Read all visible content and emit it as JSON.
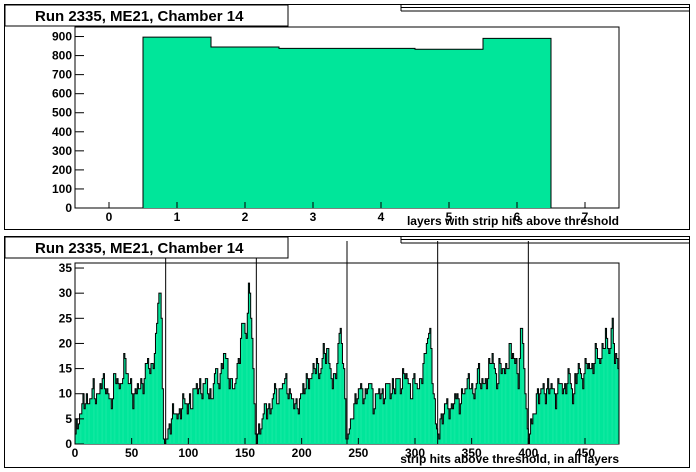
{
  "charts": [
    {
      "title": "Run 2335, ME21, Chamber 14",
      "xlabel": "layers with strip hits above threshold",
      "ylabel": "",
      "type": "bar",
      "xlim": [
        -0.5,
        7.5
      ],
      "ylim": [
        0,
        950
      ],
      "xticks": [
        0,
        1,
        2,
        3,
        4,
        5,
        6,
        7
      ],
      "yticks": [
        0,
        100,
        200,
        300,
        400,
        500,
        600,
        700,
        800,
        900
      ],
      "bin_edges": [
        0.5,
        1.5,
        2.5,
        3.5,
        4.5,
        5.5,
        6.5
      ],
      "values": [
        897,
        845,
        838,
        838,
        833,
        890
      ],
      "fill_color": "#00e69a",
      "grid": false
    },
    {
      "title": "Run 2335, ME21, Chamber 14",
      "xlabel": "strip hits above threshold, in all layers",
      "ylabel": "",
      "type": "bar",
      "xlim": [
        0,
        480
      ],
      "ylim": [
        0,
        36
      ],
      "xticks": [
        0,
        50,
        100,
        150,
        200,
        250,
        300,
        350,
        400,
        450
      ],
      "yticks": [
        0,
        5,
        10,
        15,
        20,
        25,
        30,
        35
      ],
      "markers": [
        80,
        160,
        240,
        320,
        400
      ],
      "keyframes": [
        [
          0,
          2
        ],
        [
          4,
          5
        ],
        [
          8,
          9
        ],
        [
          12,
          8
        ],
        [
          16,
          11
        ],
        [
          20,
          9
        ],
        [
          24,
          13
        ],
        [
          28,
          11
        ],
        [
          32,
          8
        ],
        [
          36,
          14
        ],
        [
          40,
          10
        ],
        [
          44,
          17
        ],
        [
          48,
          12
        ],
        [
          52,
          9
        ],
        [
          56,
          12
        ],
        [
          60,
          11
        ],
        [
          64,
          17
        ],
        [
          68,
          14
        ],
        [
          72,
          22
        ],
        [
          74,
          29
        ],
        [
          76,
          33
        ],
        [
          77,
          15
        ],
        [
          78,
          4
        ],
        [
          79,
          1
        ],
        [
          81,
          1
        ],
        [
          84,
          4
        ],
        [
          88,
          7
        ],
        [
          92,
          5
        ],
        [
          96,
          9
        ],
        [
          100,
          7
        ],
        [
          104,
          9
        ],
        [
          108,
          12
        ],
        [
          112,
          10
        ],
        [
          116,
          13
        ],
        [
          120,
          8
        ],
        [
          124,
          15
        ],
        [
          128,
          12
        ],
        [
          132,
          19
        ],
        [
          136,
          13
        ],
        [
          140,
          11
        ],
        [
          144,
          15
        ],
        [
          148,
          24
        ],
        [
          152,
          22
        ],
        [
          154,
          34
        ],
        [
          156,
          23
        ],
        [
          158,
          12
        ],
        [
          159,
          3
        ],
        [
          161,
          1
        ],
        [
          164,
          3
        ],
        [
          168,
          8
        ],
        [
          172,
          6
        ],
        [
          176,
          11
        ],
        [
          180,
          9
        ],
        [
          184,
          13
        ],
        [
          188,
          11
        ],
        [
          192,
          9
        ],
        [
          196,
          7
        ],
        [
          200,
          10
        ],
        [
          204,
          12
        ],
        [
          208,
          13
        ],
        [
          212,
          16
        ],
        [
          216,
          14
        ],
        [
          220,
          19
        ],
        [
          224,
          17
        ],
        [
          228,
          11
        ],
        [
          232,
          17
        ],
        [
          234,
          24
        ],
        [
          236,
          19
        ],
        [
          238,
          12
        ],
        [
          239,
          3
        ],
        [
          241,
          1
        ],
        [
          244,
          5
        ],
        [
          248,
          9
        ],
        [
          252,
          11
        ],
        [
          256,
          9
        ],
        [
          260,
          13
        ],
        [
          264,
          7
        ],
        [
          268,
          11
        ],
        [
          272,
          9
        ],
        [
          276,
          12
        ],
        [
          280,
          10
        ],
        [
          284,
          13
        ],
        [
          288,
          11
        ],
        [
          292,
          15
        ],
        [
          296,
          10
        ],
        [
          300,
          13
        ],
        [
          304,
          11
        ],
        [
          308,
          16
        ],
        [
          312,
          23
        ],
        [
          314,
          21
        ],
        [
          316,
          12
        ],
        [
          318,
          6
        ],
        [
          319,
          3
        ],
        [
          321,
          2
        ],
        [
          324,
          5
        ],
        [
          328,
          8
        ],
        [
          332,
          6
        ],
        [
          336,
          10
        ],
        [
          340,
          8
        ],
        [
          344,
          11
        ],
        [
          348,
          13
        ],
        [
          352,
          9
        ],
        [
          356,
          15
        ],
        [
          360,
          11
        ],
        [
          364,
          13
        ],
        [
          368,
          18
        ],
        [
          372,
          12
        ],
        [
          376,
          16
        ],
        [
          380,
          14
        ],
        [
          384,
          19
        ],
        [
          388,
          17
        ],
        [
          392,
          13
        ],
        [
          394,
          25
        ],
        [
          396,
          18
        ],
        [
          398,
          8
        ],
        [
          399,
          3
        ],
        [
          401,
          2
        ],
        [
          404,
          5
        ],
        [
          408,
          9
        ],
        [
          412,
          11
        ],
        [
          416,
          10
        ],
        [
          420,
          12
        ],
        [
          424,
          9
        ],
        [
          428,
          13
        ],
        [
          432,
          10
        ],
        [
          436,
          14
        ],
        [
          440,
          9
        ],
        [
          444,
          16
        ],
        [
          448,
          12
        ],
        [
          452,
          17
        ],
        [
          456,
          14
        ],
        [
          460,
          19
        ],
        [
          464,
          16
        ],
        [
          468,
          22
        ],
        [
          472,
          18
        ],
        [
          474,
          25
        ],
        [
          476,
          19
        ],
        [
          479,
          15
        ]
      ],
      "fill_color": "#00e69a",
      "grid": false
    }
  ]
}
